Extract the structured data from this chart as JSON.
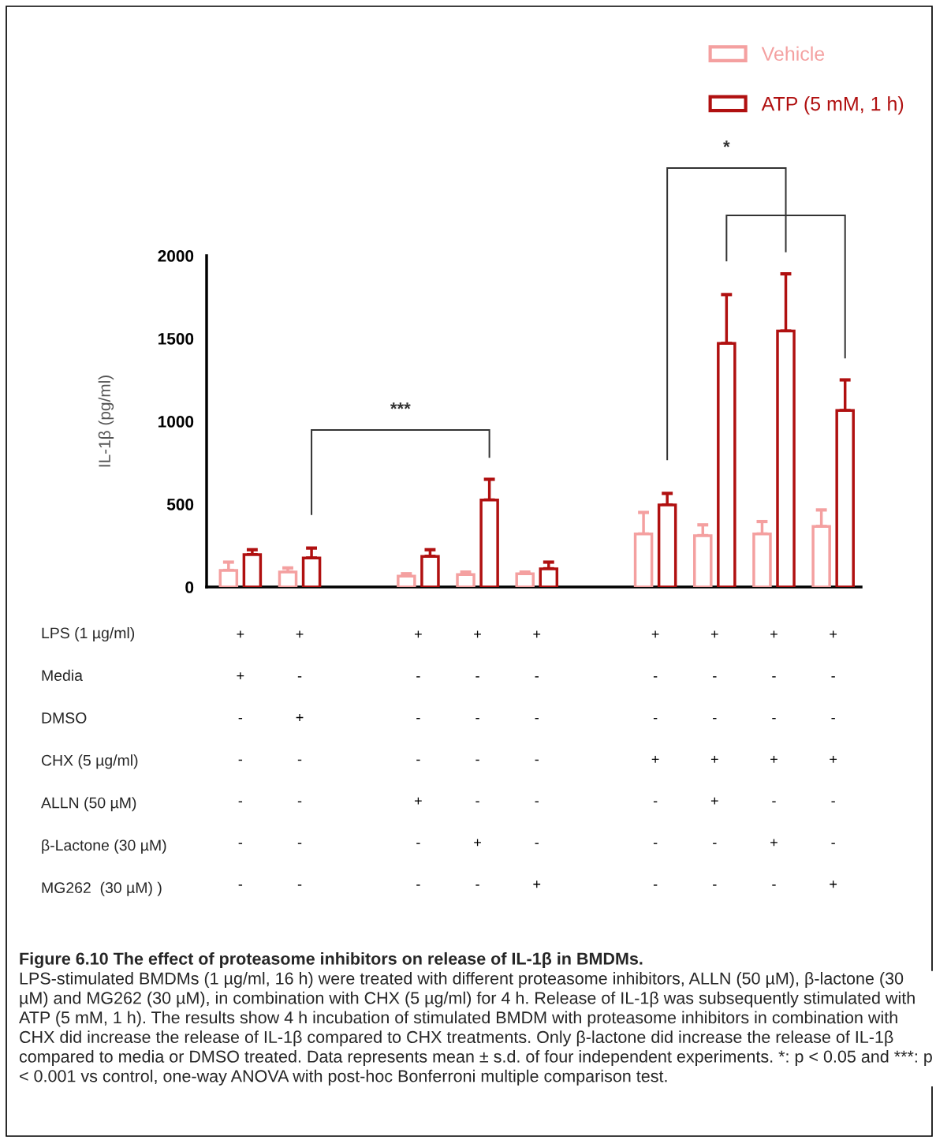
{
  "chart_data": {
    "type": "bar",
    "title": "Figure 6.10 The effect of proteasome inhibitors on release of IL-1β in BMDMs.",
    "ylabel": "IL-1β (pg/ml)",
    "categories": [
      "+\n+\n-\n-\n-\n-\n-",
      "+\n-\n+\n-\n-\n-\n-",
      null,
      "+\n-\n-\n-\n+\n-\n-",
      "+\n-\n-\n-\n-\n+\n-",
      "+\n-\n-\n-\n-\n-\n+",
      null,
      "+\n-\n-\n+\n-\n-\n-",
      "+\n-\n-\n+\n+\n-\n-",
      "+\n-\n-\n+\n-\n+\n-",
      "+\n-\n-\n+\n-\n-\n+"
    ],
    "series": [
      {
        "name": "Vehicle",
        "color": "#f4a0a0",
        "values": [
          100,
          90,
          null,
          65,
          75,
          80,
          null,
          320,
          310,
          320,
          365
        ],
        "errors": [
          [
            100,
            150
          ],
          [
            90,
            115
          ],
          null,
          [
            65,
            80
          ],
          [
            75,
            90
          ],
          [
            80,
            90
          ],
          null,
          [
            320,
            450
          ],
          [
            310,
            375
          ],
          [
            320,
            395
          ],
          [
            365,
            465
          ]
        ]
      },
      {
        "name": "ATP (5 mM, 1 h)",
        "color": "#b01010",
        "values": [
          195,
          175,
          null,
          185,
          525,
          110,
          null,
          495,
          1470,
          1545,
          1065
        ],
        "errors": [
          [
            195,
            225
          ],
          [
            175,
            235
          ],
          null,
          [
            185,
            225
          ],
          [
            525,
            650
          ],
          [
            110,
            150
          ],
          null,
          [
            495,
            565
          ],
          [
            1470,
            1765
          ],
          [
            1545,
            1890
          ],
          [
            1065,
            1250
          ]
        ]
      }
    ],
    "ylim": [
      0,
      2000
    ],
    "yticks": [
      0,
      500,
      1000,
      1500,
      2000
    ],
    "legend": "top right",
    "grid": false,
    "annotations": [
      "***",
      "*",
      "LPS (1 µg/ml)",
      "Media",
      "DMSO",
      "CHX (5 µg/ml)",
      "ALLN (50 µM)",
      "β-Lactone (30 µM)",
      "MG262  (30 µM) )",
      "LPS-stimulated BMDMs (1 µg/ml, 16 h) were treated with different proteasome inhibitors, ALLN (50 µM), β-lactone (30 µM) and MG262 (30 µM), in combination with CHX (5 µg/ml) for 4 h. Release of IL-1β was subsequently stimulated with ATP (5 mM, 1 h). The results show 4 h incubation of stimulated BMDM with proteasome inhibitors in combination with CHX did increase the release of IL-1β compared to CHX treatments. Only β-lactone did increase the release of IL-1β compared to media or DMSO treated. Data represents mean ± s.d. of four independent experiments. *: p < 0.05 and ***: p < 0.001 vs control, one-way ANOVA with post-hoc Bonferroni multiple comparison test."
    ]
  }
}
